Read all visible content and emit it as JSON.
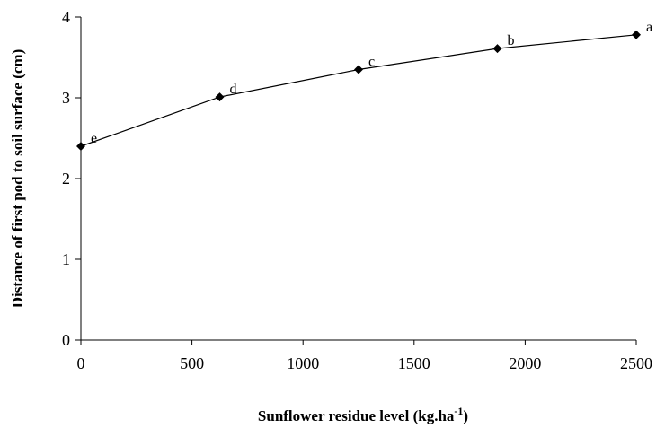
{
  "chart_data": {
    "type": "line",
    "x": [
      0,
      625,
      1250,
      1875,
      2500
    ],
    "series": [
      {
        "values": [
          2.4,
          3.01,
          3.35,
          3.61,
          3.78
        ],
        "point_labels": [
          "e",
          "d",
          "c",
          "b",
          "a"
        ]
      }
    ],
    "xlabel": "Sunflower residue level (kg.ha",
    "xlabel_superscript": "-1",
    "xlabel_suffix": ")",
    "ylabel": "Distance of first pod to soil surface (cm)",
    "xlim": [
      0,
      2500
    ],
    "ylim": [
      0,
      4
    ],
    "x_ticks": [
      0,
      500,
      1000,
      1500,
      2000,
      2500
    ],
    "y_ticks": [
      0,
      1,
      2,
      3,
      4
    ],
    "grid": false,
    "marker": "diamond",
    "line_color": "#000000"
  }
}
